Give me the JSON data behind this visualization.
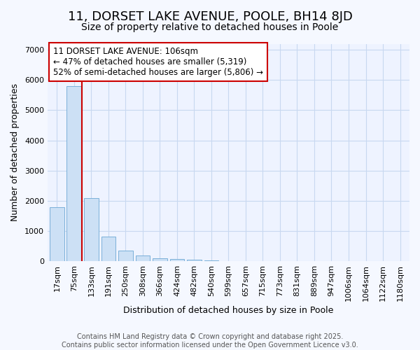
{
  "title_line1": "11, DORSET LAKE AVENUE, POOLE, BH14 8JD",
  "title_line2": "Size of property relative to detached houses in Poole",
  "xlabel": "Distribution of detached houses by size in Poole",
  "ylabel": "Number of detached properties",
  "bin_labels": [
    "17sqm",
    "75sqm",
    "133sqm",
    "191sqm",
    "250sqm",
    "308sqm",
    "366sqm",
    "424sqm",
    "482sqm",
    "540sqm",
    "599sqm",
    "657sqm",
    "715sqm",
    "773sqm",
    "831sqm",
    "889sqm",
    "947sqm",
    "1006sqm",
    "1064sqm",
    "1122sqm",
    "1180sqm"
  ],
  "bar_heights": [
    1780,
    5800,
    2080,
    820,
    350,
    190,
    100,
    70,
    55,
    30,
    15,
    10,
    5,
    2,
    1,
    0,
    0,
    0,
    0,
    0,
    0
  ],
  "bar_color": "#cce0f5",
  "bar_edge_color": "#7ab0d8",
  "red_line_x": 1.47,
  "annotation_title": "11 DORSET LAKE AVENUE: 106sqm",
  "annotation_line2": "← 47% of detached houses are smaller (5,319)",
  "annotation_line3": "52% of semi-detached houses are larger (5,806) →",
  "annotation_box_color": "#ffffff",
  "annotation_box_edge": "#cc0000",
  "footer_line1": "Contains HM Land Registry data © Crown copyright and database right 2025.",
  "footer_line2": "Contains public sector information licensed under the Open Government Licence v3.0.",
  "ylim": [
    0,
    7200
  ],
  "yticks": [
    0,
    1000,
    2000,
    3000,
    4000,
    5000,
    6000,
    7000
  ],
  "bg_color": "#f5f8ff",
  "plot_bg_color": "#eef3ff",
  "grid_color": "#c8d8f0",
  "font_size_title1": 13,
  "font_size_title2": 10,
  "font_size_axis_label": 9,
  "font_size_ticks": 8,
  "font_size_annotation": 8.5,
  "font_size_footer": 7
}
